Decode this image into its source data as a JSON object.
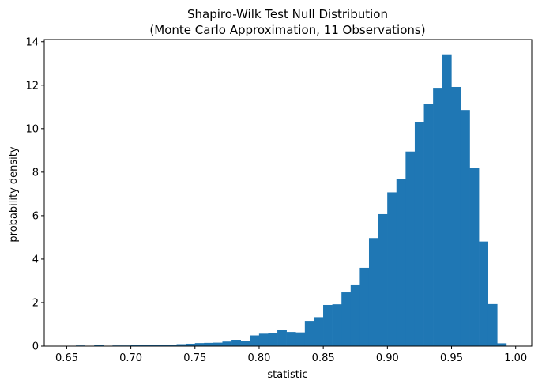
{
  "chart_data": {
    "type": "bar",
    "histogram": true,
    "title": "Shapiro-Wilk Test Null Distribution",
    "subtitle": "(Monte Carlo Approximation, 11 Observations)",
    "xlabel": "statistic",
    "ylabel": "probability density",
    "xlim": [
      0.6325,
      1.0125
    ],
    "ylim": [
      0,
      14.1
    ],
    "xticks": [
      "0.65",
      "0.70",
      "0.75",
      "0.80",
      "0.85",
      "0.90",
      "0.95",
      "1.00"
    ],
    "xtick_values": [
      0.65,
      0.7,
      0.75,
      0.8,
      0.85,
      0.9,
      0.95,
      1.0
    ],
    "yticks": [
      "0",
      "2",
      "4",
      "6",
      "8",
      "10",
      "12",
      "14"
    ],
    "ytick_values": [
      0,
      2,
      4,
      6,
      8,
      10,
      12,
      14
    ],
    "bin_start": 0.65,
    "bin_width": 0.00714,
    "values": [
      0.01,
      0.03,
      0.0,
      0.04,
      0.01,
      0.03,
      0.03,
      0.04,
      0.05,
      0.04,
      0.07,
      0.05,
      0.09,
      0.11,
      0.14,
      0.15,
      0.16,
      0.21,
      0.29,
      0.24,
      0.49,
      0.57,
      0.59,
      0.73,
      0.65,
      0.63,
      1.16,
      1.33,
      1.89,
      1.92,
      2.47,
      2.8,
      3.6,
      4.97,
      6.07,
      7.07,
      7.67,
      8.95,
      10.32,
      11.15,
      11.88,
      13.42,
      11.92,
      10.86,
      8.2,
      4.81,
      1.93,
      0.13
    ],
    "color": "#1f77b4",
    "grid": false,
    "legend": "none"
  }
}
